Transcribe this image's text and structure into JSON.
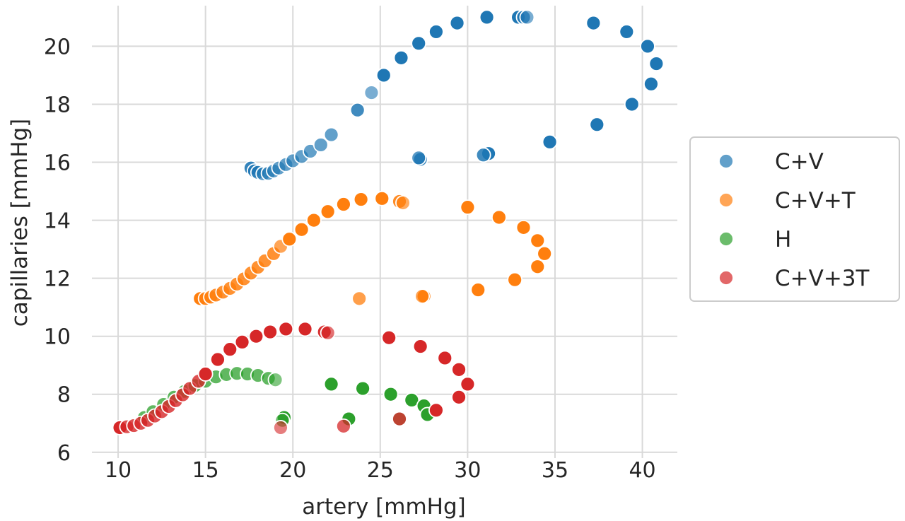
{
  "chart_data": {
    "type": "scatter",
    "title": "",
    "xlabel": "artery [mmHg]",
    "ylabel": "capillaries [mmHg]",
    "xlim": [
      8.5,
      42
    ],
    "ylim": [
      5.8,
      21.4
    ],
    "xticks": [
      10,
      15,
      20,
      25,
      30,
      35,
      40
    ],
    "yticks": [
      6,
      8,
      10,
      12,
      14,
      16,
      18,
      20
    ],
    "grid": true,
    "legend_position": "right",
    "series": [
      {
        "name": "C+V",
        "color": "#1f77b4",
        "x": [
          17.6,
          17.8,
          18.0,
          18.3,
          18.6,
          18.9,
          19.2,
          19.6,
          20.0,
          20.5,
          21.0,
          21.6,
          22.2,
          23.7,
          24.5,
          25.2,
          26.2,
          27.2,
          28.2,
          29.4,
          31.1,
          32.9,
          33.2,
          33.4,
          37.2,
          39.1,
          40.3,
          40.8,
          40.5,
          39.4,
          37.4,
          34.7,
          31.2,
          30.9,
          27.3,
          27.2
        ],
        "y": [
          15.8,
          15.7,
          15.65,
          15.6,
          15.62,
          15.7,
          15.8,
          15.92,
          16.05,
          16.2,
          16.38,
          16.6,
          16.95,
          17.8,
          18.4,
          19.0,
          19.6,
          20.1,
          20.5,
          20.8,
          21.0,
          21.0,
          21.0,
          21.0,
          20.8,
          20.5,
          20.0,
          19.4,
          18.7,
          18.0,
          17.3,
          16.7,
          16.3,
          16.25,
          16.1,
          16.15
        ],
        "alpha": [
          0.9,
          0.75,
          0.75,
          0.7,
          0.7,
          0.7,
          0.7,
          0.7,
          0.7,
          0.7,
          0.7,
          0.7,
          0.7,
          0.85,
          0.6,
          1,
          1,
          1,
          1,
          1,
          1,
          1,
          0.8,
          0.6,
          1,
          1,
          1,
          1,
          1,
          1,
          1,
          1,
          1,
          0.85,
          0.9,
          0.75
        ]
      },
      {
        "name": "C+V+T",
        "color": "#ff7f0e",
        "x": [
          14.7,
          15.0,
          15.3,
          15.6,
          16.0,
          16.4,
          16.8,
          17.2,
          17.6,
          18.0,
          18.4,
          18.9,
          19.3,
          19.8,
          20.5,
          21.2,
          22.0,
          22.9,
          23.9,
          25.1,
          26.1,
          26.3,
          30.0,
          31.8,
          33.2,
          34.0,
          34.4,
          34.0,
          32.7,
          30.6,
          27.5,
          27.4,
          23.8
        ],
        "y": [
          11.3,
          11.3,
          11.35,
          11.42,
          11.52,
          11.65,
          11.8,
          11.98,
          12.18,
          12.38,
          12.6,
          12.85,
          13.1,
          13.35,
          13.68,
          14.0,
          14.3,
          14.55,
          14.72,
          14.75,
          14.65,
          14.6,
          14.45,
          14.1,
          13.75,
          13.3,
          12.85,
          12.4,
          11.95,
          11.6,
          11.38,
          11.38,
          11.3
        ],
        "alpha": [
          1,
          0.9,
          0.85,
          0.85,
          0.85,
          0.85,
          0.85,
          0.85,
          0.85,
          0.85,
          0.85,
          0.85,
          0.7,
          1,
          1,
          1,
          1,
          1,
          1,
          1,
          0.9,
          0.65,
          1,
          1,
          1,
          1,
          1,
          1,
          1,
          1,
          1,
          0.7,
          0.75
        ]
      },
      {
        "name": "H",
        "color": "#2ca02c",
        "x": [
          11.5,
          12.0,
          12.6,
          13.2,
          13.8,
          14.4,
          15.0,
          15.6,
          16.2,
          16.8,
          17.4,
          18.0,
          18.6,
          19.0,
          22.2,
          24.0,
          25.6,
          26.8,
          27.5,
          27.7,
          19.5,
          19.4,
          23.2,
          26.1
        ],
        "y": [
          7.2,
          7.4,
          7.65,
          7.9,
          8.1,
          8.3,
          8.45,
          8.6,
          8.68,
          8.72,
          8.7,
          8.65,
          8.55,
          8.5,
          8.35,
          8.2,
          8.0,
          7.8,
          7.6,
          7.3,
          7.2,
          7.1,
          7.15,
          7.15
        ],
        "alpha": [
          0.75,
          0.75,
          0.75,
          0.75,
          0.75,
          0.75,
          0.75,
          0.75,
          0.75,
          0.75,
          0.75,
          0.75,
          0.75,
          0.6,
          1,
          1,
          1,
          1,
          1,
          1,
          1,
          0.7,
          1,
          0.8
        ]
      },
      {
        "name": "C+V+3T",
        "color": "#d62728",
        "x": [
          10.1,
          10.5,
          10.9,
          11.3,
          11.7,
          12.1,
          12.5,
          12.9,
          13.3,
          13.7,
          14.1,
          14.6,
          15.0,
          15.7,
          16.4,
          17.1,
          17.9,
          18.7,
          19.6,
          20.7,
          21.8,
          22.0,
          25.5,
          27.3,
          28.7,
          29.5,
          30.0,
          29.5,
          28.2,
          26.1,
          22.9,
          19.3
        ],
        "y": [
          6.85,
          6.88,
          6.92,
          7.0,
          7.1,
          7.25,
          7.4,
          7.58,
          7.78,
          7.98,
          8.2,
          8.45,
          8.7,
          9.2,
          9.55,
          9.8,
          10.0,
          10.15,
          10.25,
          10.25,
          10.15,
          10.12,
          9.95,
          9.65,
          9.25,
          8.85,
          8.35,
          7.9,
          7.45,
          7.15,
          6.9,
          6.85
        ],
        "alpha": [
          1,
          0.8,
          0.8,
          0.8,
          0.8,
          0.8,
          0.8,
          0.8,
          0.8,
          0.8,
          0.8,
          0.8,
          1,
          1,
          1,
          1,
          1,
          1,
          1,
          1,
          0.95,
          0.65,
          1,
          1,
          1,
          1,
          1,
          1,
          1,
          0.8,
          0.75,
          0.6
        ]
      }
    ]
  }
}
